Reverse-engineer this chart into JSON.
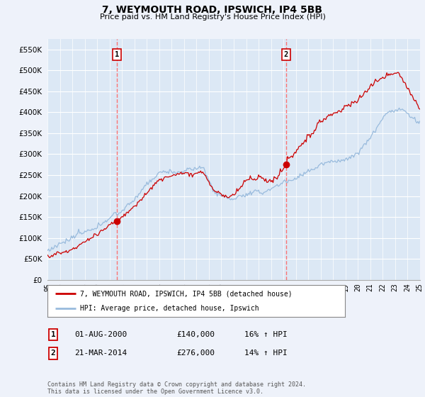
{
  "title": "7, WEYMOUTH ROAD, IPSWICH, IP4 5BB",
  "subtitle": "Price paid vs. HM Land Registry's House Price Index (HPI)",
  "ylim": [
    0,
    575000
  ],
  "yticks": [
    0,
    50000,
    100000,
    150000,
    200000,
    250000,
    300000,
    350000,
    400000,
    450000,
    500000,
    550000
  ],
  "background_color": "#eef2fa",
  "plot_bg_color": "#dce8f5",
  "grid_color": "#ffffff",
  "line1_color": "#cc0000",
  "line2_color": "#99bbdd",
  "marker_color": "#cc0000",
  "vline_color": "#ff6666",
  "sale1_x": 2000.58,
  "sale1_y": 140000,
  "sale2_x": 2014.22,
  "sale2_y": 276000,
  "legend_line1": "7, WEYMOUTH ROAD, IPSWICH, IP4 5BB (detached house)",
  "legend_line2": "HPI: Average price, detached house, Ipswich",
  "annotation1_num": "1",
  "annotation1_date": "01-AUG-2000",
  "annotation1_price": "£140,000",
  "annotation1_hpi": "16% ↑ HPI",
  "annotation2_num": "2",
  "annotation2_date": "21-MAR-2014",
  "annotation2_price": "£276,000",
  "annotation2_hpi": "14% ↑ HPI",
  "footer": "Contains HM Land Registry data © Crown copyright and database right 2024.\nThis data is licensed under the Open Government Licence v3.0.",
  "xmin": 1995,
  "xmax": 2025
}
